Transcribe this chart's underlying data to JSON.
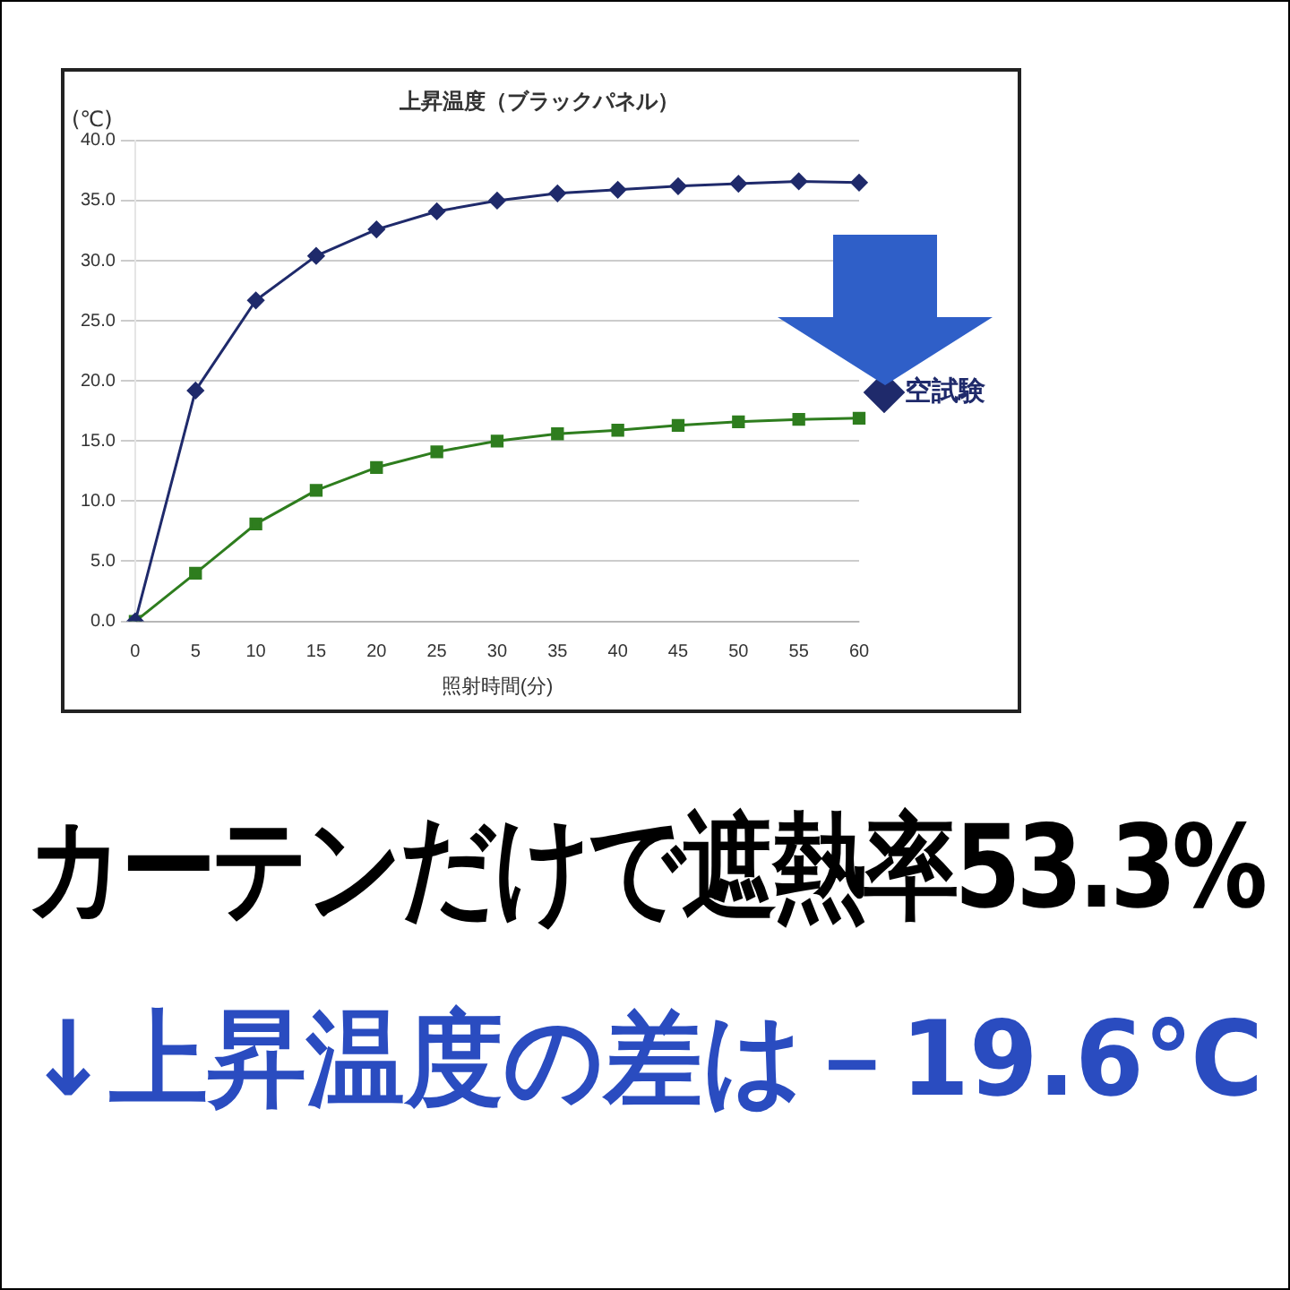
{
  "chart_data": {
    "type": "line",
    "title": "上昇温度（ブラックパネル）",
    "xlabel": "照射時間(分)",
    "ylabel": "(℃)",
    "categories": [
      "0",
      "5",
      "10",
      "15",
      "20",
      "25",
      "30",
      "35",
      "40",
      "45",
      "50",
      "55",
      "60"
    ],
    "series": [
      {
        "name": "空試験",
        "color": "#1f2a6b",
        "marker": "diamond",
        "values": [
          0,
          19.2,
          26.7,
          30.4,
          32.6,
          34.1,
          35.0,
          35.6,
          35.9,
          36.2,
          36.4,
          36.6,
          36.5
        ]
      },
      {
        "color": "#2e7d1e",
        "marker": "square",
        "values": [
          0,
          4.0,
          8.1,
          10.9,
          12.8,
          14.1,
          15.0,
          15.6,
          15.9,
          16.3,
          16.6,
          16.8,
          16.9
        ]
      }
    ],
    "ylim": [
      0,
      40
    ],
    "yticks": [
      {
        "value": 0,
        "label": "0.0"
      },
      {
        "value": 5,
        "label": "5.0"
      },
      {
        "value": 10,
        "label": "10.0"
      },
      {
        "value": 15,
        "label": "15.0"
      },
      {
        "value": 20,
        "label": "20.0"
      },
      {
        "value": 25,
        "label": "25.0"
      },
      {
        "value": 30,
        "label": "30.0"
      },
      {
        "value": 35,
        "label": "35.0"
      },
      {
        "value": 40,
        "label": "40.0"
      }
    ],
    "grid": "y",
    "legend": "right",
    "line_style": "solid",
    "annotations": [
      "カーテンだけで遮熱率53.3%",
      "↓上昇温度の差は－19.6℃"
    ]
  }
}
